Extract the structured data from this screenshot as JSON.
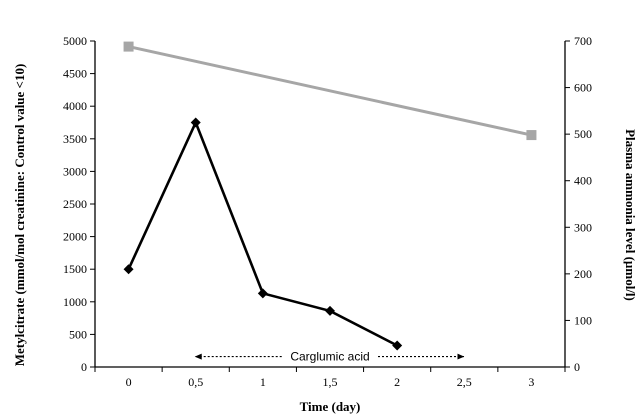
{
  "chart_data": {
    "type": "line",
    "xlabel": "Time (day)",
    "ylabel_left": "Metylcitrate (mmol/mol creatinine: Control value <10)",
    "ylabel_right": "Plasma ammonia level (µmol/l)",
    "x_ticks": [
      "0",
      "0,5",
      "1",
      "1,5",
      "2",
      "2,5",
      "3"
    ],
    "x_range": [
      -0.25,
      3.25
    ],
    "y_left": {
      "range": [
        0,
        5000
      ],
      "ticks": [
        "0",
        "500",
        "1000",
        "1500",
        "2000",
        "2500",
        "3000",
        "3500",
        "4000",
        "4500",
        "5000"
      ]
    },
    "y_right": {
      "range": [
        0,
        700
      ],
      "ticks": [
        "0",
        "100",
        "200",
        "300",
        "400",
        "500",
        "600",
        "700"
      ]
    },
    "series": [
      {
        "axis": "left",
        "color": "#000000",
        "marker": "diamond",
        "x": [
          0,
          0.5,
          1,
          1.5,
          2
        ],
        "y": [
          1500,
          3750,
          1130,
          860,
          330
        ]
      },
      {
        "axis": "right",
        "color": "#a6a6a6",
        "marker": "square",
        "x": [
          0,
          3
        ],
        "y": [
          688,
          498
        ]
      }
    ],
    "annotation": {
      "text": "Carglumic acid",
      "x_start": 0.5,
      "x_end": 2.5,
      "y_left": 160
    },
    "grid": false,
    "legend": "none"
  }
}
